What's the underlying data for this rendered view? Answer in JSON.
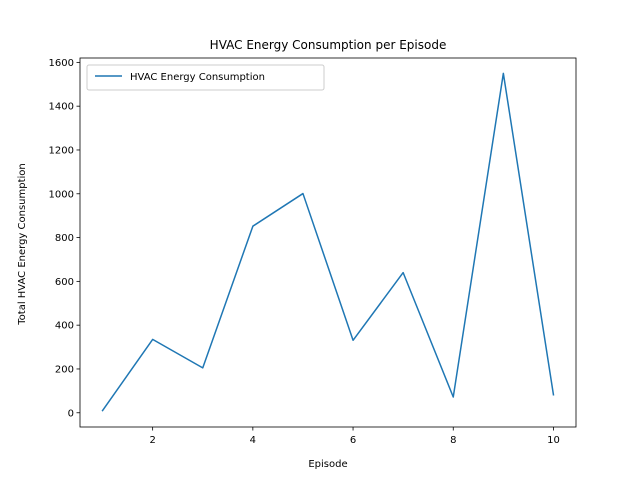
{
  "chart_data": {
    "type": "line",
    "title": "HVAC Energy Consumption per Episode",
    "xlabel": "Episode",
    "ylabel": "Total HVAC Energy Consumption",
    "xlim": [
      0.55,
      10.45
    ],
    "ylim": [
      -65,
      1620
    ],
    "xticks": [
      2,
      4,
      6,
      8,
      10
    ],
    "yticks": [
      0,
      200,
      400,
      600,
      800,
      1000,
      1200,
      1400,
      1600
    ],
    "grid": false,
    "legend_position": "top-left",
    "series": [
      {
        "name": "HVAC Energy Consumption",
        "color": "#1f77b4",
        "x": [
          1,
          2,
          3,
          4,
          5,
          6,
          7,
          8,
          9,
          10
        ],
        "y": [
          10,
          335,
          205,
          852,
          1001,
          331,
          640,
          72,
          1550,
          82
        ]
      }
    ]
  }
}
